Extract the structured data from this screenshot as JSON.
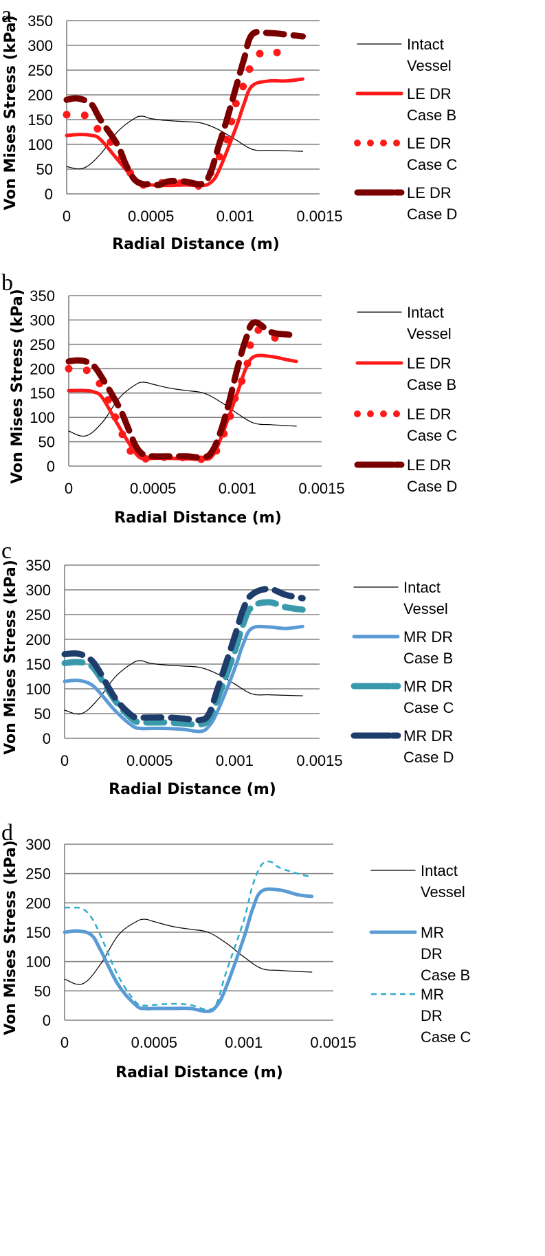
{
  "chart_data": [
    {
      "type": "line",
      "panel": "a",
      "xlabel": "Radial Distance (m)",
      "ylabel": "Von Mises Stress (kPa)",
      "xlim": [
        0,
        0.0015
      ],
      "ylim": [
        0,
        350
      ],
      "xticks": [
        0,
        0.0005,
        0.001,
        0.0015
      ],
      "xtick_labels": [
        "0",
        "0.0005",
        "0.001",
        "0.0015"
      ],
      "yticks": [
        0,
        50,
        100,
        150,
        200,
        250,
        300,
        350
      ],
      "ytick_labels": [
        "0",
        "50",
        "100",
        "150",
        "200",
        "250",
        "300",
        "350"
      ],
      "grid": "horizontal",
      "legend_position": "right",
      "series": [
        {
          "name": "Intact Vessel",
          "legend_lines": [
            "Intact",
            "Vessel"
          ],
          "color": "#000000",
          "style": "thin",
          "x": [
            0,
            0.0001,
            0.0002,
            0.0003,
            0.0004,
            0.00045,
            0.0005,
            0.0006,
            0.0007,
            0.0008,
            0.0009,
            0.001,
            0.0011,
            0.0012,
            0.0013,
            0.0014
          ],
          "y": [
            55,
            52,
            80,
            125,
            152,
            157,
            152,
            148,
            146,
            143,
            130,
            110,
            90,
            88,
            87,
            86
          ]
        },
        {
          "name": "LE DR Case B",
          "legend_lines": [
            "LE DR",
            "Case B"
          ],
          "color": "#ff1a1a",
          "style": "solid",
          "x": [
            0,
            8e-05,
            0.00015,
            0.0002,
            0.0003,
            0.0004,
            0.00045,
            0.0005,
            0.0006,
            0.0007,
            0.0008,
            0.00085,
            0.0009,
            0.001,
            0.00105,
            0.0011,
            0.0012,
            0.0013,
            0.0014
          ],
          "y": [
            118,
            120,
            118,
            110,
            70,
            30,
            18,
            18,
            17,
            18,
            17,
            22,
            45,
            130,
            180,
            218,
            228,
            228,
            232
          ]
        },
        {
          "name": "LE DR Case C",
          "legend_lines": [
            "LE DR",
            "Case C"
          ],
          "color": "#ff1a1a",
          "style": "dotted",
          "x": [
            0,
            0.0001,
            0.0002,
            0.0003,
            0.00035,
            0.0004,
            0.00045,
            0.00055,
            0.00065,
            0.00075,
            0.0008,
            0.00087,
            0.00095,
            0.001,
            0.00105,
            0.0011,
            0.00118,
            0.0013
          ],
          "y": [
            160,
            160,
            125,
            90,
            60,
            30,
            18,
            22,
            22,
            20,
            18,
            52,
            110,
            178,
            220,
            262,
            290,
            278
          ]
        },
        {
          "name": "LE DR Case D",
          "legend_lines": [
            "LE DR",
            "Case D"
          ],
          "color": "#7a0000",
          "style": "dashed",
          "x": [
            0,
            5e-05,
            0.0001,
            0.00015,
            0.0002,
            0.0003,
            0.00035,
            0.0004,
            0.00045,
            0.0005,
            0.00055,
            0.0006,
            0.0007,
            0.0008,
            0.00085,
            0.0009,
            0.00095,
            0.001,
            0.00105,
            0.0011,
            0.0012,
            0.0013,
            0.0014
          ],
          "y": [
            190,
            193,
            190,
            180,
            150,
            100,
            60,
            30,
            20,
            20,
            18,
            25,
            25,
            20,
            40,
            95,
            150,
            210,
            270,
            322,
            325,
            322,
            318
          ]
        }
      ]
    },
    {
      "type": "line",
      "panel": "b",
      "xlabel": "Radial Distance (m)",
      "ylabel": "Von Mises Stress (kPa)",
      "xlim": [
        0,
        0.0015
      ],
      "ylim": [
        0,
        350
      ],
      "xticks": [
        0,
        0.0005,
        0.001,
        0.0015
      ],
      "xtick_labels": [
        "0",
        "0.0005",
        "0.001",
        "0.0015"
      ],
      "yticks": [
        0,
        50,
        100,
        150,
        200,
        250,
        300,
        350
      ],
      "ytick_labels": [
        "0",
        "50",
        "100",
        "150",
        "200",
        "250",
        "300",
        "350"
      ],
      "grid": "horizontal",
      "legend_position": "right",
      "series": [
        {
          "name": "Intact Vessel",
          "legend_lines": [
            "Intact",
            "Vessel"
          ],
          "color": "#000000",
          "style": "thin",
          "x": [
            0,
            0.0001,
            0.0002,
            0.0003,
            0.0004,
            0.00045,
            0.0005,
            0.0006,
            0.0007,
            0.0008,
            0.0009,
            0.001,
            0.0011,
            0.0012,
            0.0013,
            0.00135
          ],
          "y": [
            72,
            62,
            90,
            140,
            168,
            172,
            168,
            160,
            155,
            150,
            132,
            108,
            88,
            85,
            83,
            82
          ]
        },
        {
          "name": "LE DR Case B",
          "legend_lines": [
            "LE DR",
            "Case B"
          ],
          "color": "#ff1a1a",
          "style": "solid",
          "x": [
            0,
            0.0001,
            0.00015,
            0.0002,
            0.0003,
            0.0004,
            0.00045,
            0.0005,
            0.0006,
            0.0007,
            0.0008,
            0.00085,
            0.0009,
            0.001,
            0.00105,
            0.0011,
            0.0012,
            0.0013,
            0.00135
          ],
          "y": [
            155,
            155,
            152,
            140,
            80,
            25,
            15,
            16,
            16,
            15,
            14,
            20,
            55,
            150,
            200,
            225,
            225,
            218,
            215
          ]
        },
        {
          "name": "LE DR Case C",
          "legend_lines": [
            "LE DR",
            "Case C"
          ],
          "color": "#ff1a1a",
          "style": "dotted",
          "x": [
            0,
            0.0001,
            0.0002,
            0.0003,
            0.00035,
            0.0004,
            0.00045,
            0.00055,
            0.00065,
            0.00075,
            0.0008,
            0.00087,
            0.00095,
            0.001,
            0.00105,
            0.0011,
            0.0012,
            0.0013
          ],
          "y": [
            200,
            198,
            160,
            80,
            40,
            18,
            15,
            18,
            18,
            16,
            15,
            28,
            95,
            155,
            195,
            275,
            265,
            258
          ]
        },
        {
          "name": "LE DR Case D",
          "legend_lines": [
            "LE DR",
            "Case D"
          ],
          "color": "#7a0000",
          "style": "dashed",
          "x": [
            0,
            5e-05,
            0.0001,
            0.00015,
            0.0002,
            0.0003,
            0.00035,
            0.0004,
            0.00045,
            0.0005,
            0.0006,
            0.0007,
            0.0008,
            0.00085,
            0.0009,
            0.00095,
            0.001,
            0.00105,
            0.0011,
            0.0012,
            0.0013,
            0.00135
          ],
          "y": [
            215,
            217,
            215,
            205,
            180,
            120,
            80,
            40,
            22,
            20,
            20,
            20,
            18,
            30,
            70,
            130,
            200,
            260,
            295,
            275,
            270,
            268
          ]
        }
      ]
    },
    {
      "type": "line",
      "panel": "c",
      "xlabel": "Radial Distance (m)",
      "ylabel": "Von Mises Stress (kPa)",
      "xlim": [
        0,
        0.0015
      ],
      "ylim": [
        0,
        350
      ],
      "xticks": [
        0,
        0.0005,
        0.001,
        0.0015
      ],
      "xtick_labels": [
        "0",
        "0.0005",
        "0.001",
        "0.0015"
      ],
      "yticks": [
        0,
        50,
        100,
        150,
        200,
        250,
        300,
        350
      ],
      "ytick_labels": [
        "0",
        "50",
        "100",
        "150",
        "200",
        "250",
        "300",
        "350"
      ],
      "grid": "horizontal",
      "legend_position": "right",
      "series": [
        {
          "name": "Intact Vessel",
          "legend_lines": [
            "Intact",
            "Vessel"
          ],
          "color": "#000000",
          "style": "thin",
          "x": [
            0,
            0.0001,
            0.0002,
            0.0003,
            0.0004,
            0.00045,
            0.0005,
            0.0006,
            0.0007,
            0.0008,
            0.0009,
            0.001,
            0.0011,
            0.0012,
            0.0013,
            0.0014
          ],
          "y": [
            57,
            50,
            80,
            125,
            152,
            157,
            152,
            148,
            146,
            143,
            130,
            110,
            90,
            88,
            87,
            86
          ]
        },
        {
          "name": "MR DR Case B",
          "legend_lines": [
            "MR DR",
            "Case B"
          ],
          "color": "#5b9bd5",
          "style": "solid",
          "x": [
            0,
            8e-05,
            0.00015,
            0.0002,
            0.0003,
            0.0004,
            0.00045,
            0.0005,
            0.0006,
            0.0007,
            0.0008,
            0.00085,
            0.0009,
            0.001,
            0.00105,
            0.0011,
            0.0012,
            0.0013,
            0.0014
          ],
          "y": [
            115,
            117,
            110,
            95,
            55,
            25,
            20,
            20,
            20,
            18,
            14,
            25,
            55,
            140,
            190,
            222,
            225,
            222,
            226
          ]
        },
        {
          "name": "MR DR Case C",
          "legend_lines": [
            "MR DR",
            "Case C"
          ],
          "color": "#3a9aab",
          "style": "dashed",
          "x": [
            0,
            8e-05,
            0.00015,
            0.0002,
            0.0003,
            0.0004,
            0.00045,
            0.0005,
            0.0006,
            0.0007,
            0.0008,
            0.00085,
            0.0009,
            0.001,
            0.00105,
            0.0011,
            0.0012,
            0.0013,
            0.0014
          ],
          "y": [
            152,
            154,
            148,
            128,
            75,
            38,
            33,
            32,
            32,
            30,
            28,
            40,
            80,
            175,
            230,
            265,
            275,
            265,
            260
          ]
        },
        {
          "name": "MR DR Case D",
          "legend_lines": [
            "MR DR",
            "Case D"
          ],
          "color": "#1f3d6b",
          "style": "dashed",
          "x": [
            0,
            8e-05,
            0.00015,
            0.0002,
            0.0003,
            0.0004,
            0.00045,
            0.0005,
            0.0006,
            0.0007,
            0.0008,
            0.00085,
            0.0009,
            0.001,
            0.00105,
            0.0011,
            0.0012,
            0.0013,
            0.0014
          ],
          "y": [
            170,
            171,
            160,
            138,
            80,
            45,
            42,
            42,
            42,
            40,
            37,
            50,
            100,
            205,
            260,
            290,
            302,
            290,
            283
          ]
        }
      ]
    },
    {
      "type": "line",
      "panel": "d",
      "xlabel": "Radial Distance (m)",
      "ylabel": "Von Mises Stress (kPa)",
      "xlim": [
        0,
        0.0015
      ],
      "ylim": [
        0,
        300
      ],
      "xticks": [
        0,
        0.0005,
        0.001,
        0.0015
      ],
      "xtick_labels": [
        "0",
        "0.0005",
        "0.001",
        "0.0015"
      ],
      "yticks": [
        0,
        50,
        100,
        150,
        200,
        250,
        300
      ],
      "ytick_labels": [
        "0",
        "50",
        "100",
        "150",
        "200",
        "250",
        "300"
      ],
      "grid": "horizontal",
      "legend_position": "right",
      "series": [
        {
          "name": "Intact Vessel",
          "legend_lines": [
            "Intact",
            "Vessel"
          ],
          "color": "#000000",
          "style": "thin",
          "x": [
            0,
            0.0001,
            0.0002,
            0.0003,
            0.0004,
            0.00045,
            0.0005,
            0.0006,
            0.0007,
            0.0008,
            0.0009,
            0.001,
            0.0011,
            0.0012,
            0.0013,
            0.00138
          ],
          "y": [
            70,
            62,
            95,
            145,
            168,
            172,
            168,
            160,
            155,
            150,
            132,
            108,
            88,
            85,
            83,
            82
          ]
        },
        {
          "name": "MR DR Case B",
          "legend_lines": [
            "MR",
            "DR",
            "Case B"
          ],
          "color": "#5b9bd5",
          "style": "solid",
          "x": [
            0,
            8e-05,
            0.00015,
            0.0002,
            0.0003,
            0.0004,
            0.00045,
            0.0005,
            0.0006,
            0.0007,
            0.0008,
            0.00085,
            0.0009,
            0.001,
            0.00105,
            0.0011,
            0.0012,
            0.0013,
            0.00138
          ],
          "y": [
            150,
            152,
            145,
            120,
            60,
            25,
            20,
            20,
            20,
            20,
            15,
            25,
            55,
            140,
            190,
            220,
            222,
            214,
            211
          ]
        },
        {
          "name": "MR DR Case C",
          "legend_lines": [
            "MR",
            "DR",
            "Case C"
          ],
          "color": "#2eaccc",
          "style": "dashed-thin",
          "x": [
            0,
            5e-05,
            0.0001,
            0.00015,
            0.0002,
            0.0003,
            0.0004,
            0.00045,
            0.0005,
            0.0006,
            0.0007,
            0.0008,
            0.00085,
            0.0009,
            0.001,
            0.00105,
            0.0011,
            0.00115,
            0.0012,
            0.0013,
            0.00138
          ],
          "y": [
            192,
            192,
            190,
            175,
            145,
            75,
            30,
            25,
            26,
            28,
            26,
            18,
            30,
            80,
            170,
            230,
            265,
            270,
            260,
            250,
            244
          ]
        }
      ]
    }
  ]
}
